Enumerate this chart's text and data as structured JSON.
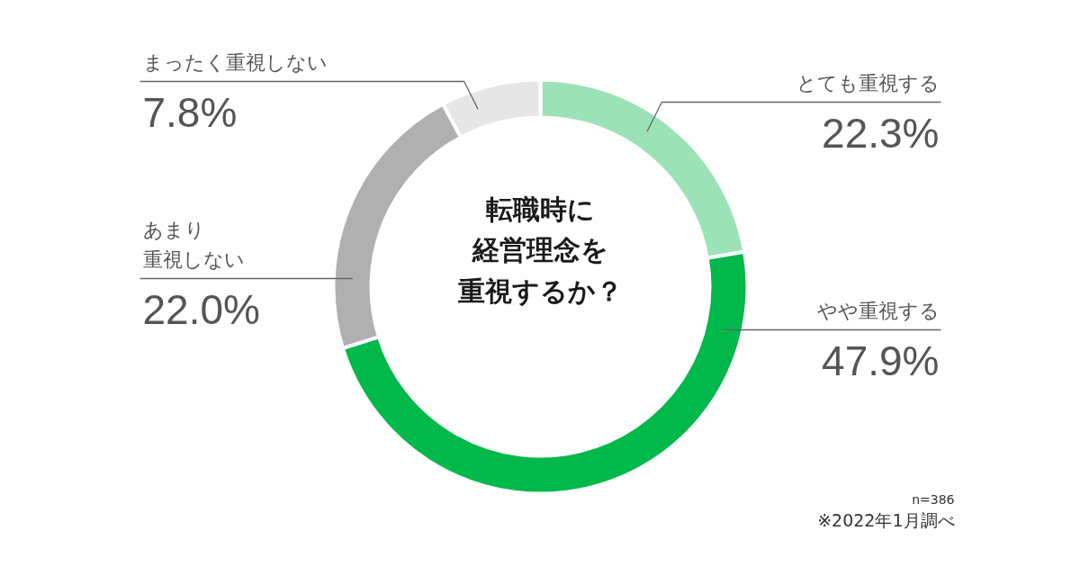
{
  "chart_data": {
    "type": "donut",
    "title": "転職時に経営理念を重視するか？",
    "categories": [
      "とても重視する",
      "やや重視する",
      "あまり重視しない",
      "まったく重視しない"
    ],
    "values": [
      22.3,
      47.9,
      22.0,
      7.8
    ],
    "colors": [
      "#9be3b6",
      "#00b94a",
      "#b0b0b0",
      "#e6e6e6"
    ],
    "value_labels": [
      "22.3%",
      "47.9%",
      "22.0%",
      "7.8%"
    ],
    "annotations": [
      "n=386",
      "※2022年1月調べ"
    ]
  }
}
